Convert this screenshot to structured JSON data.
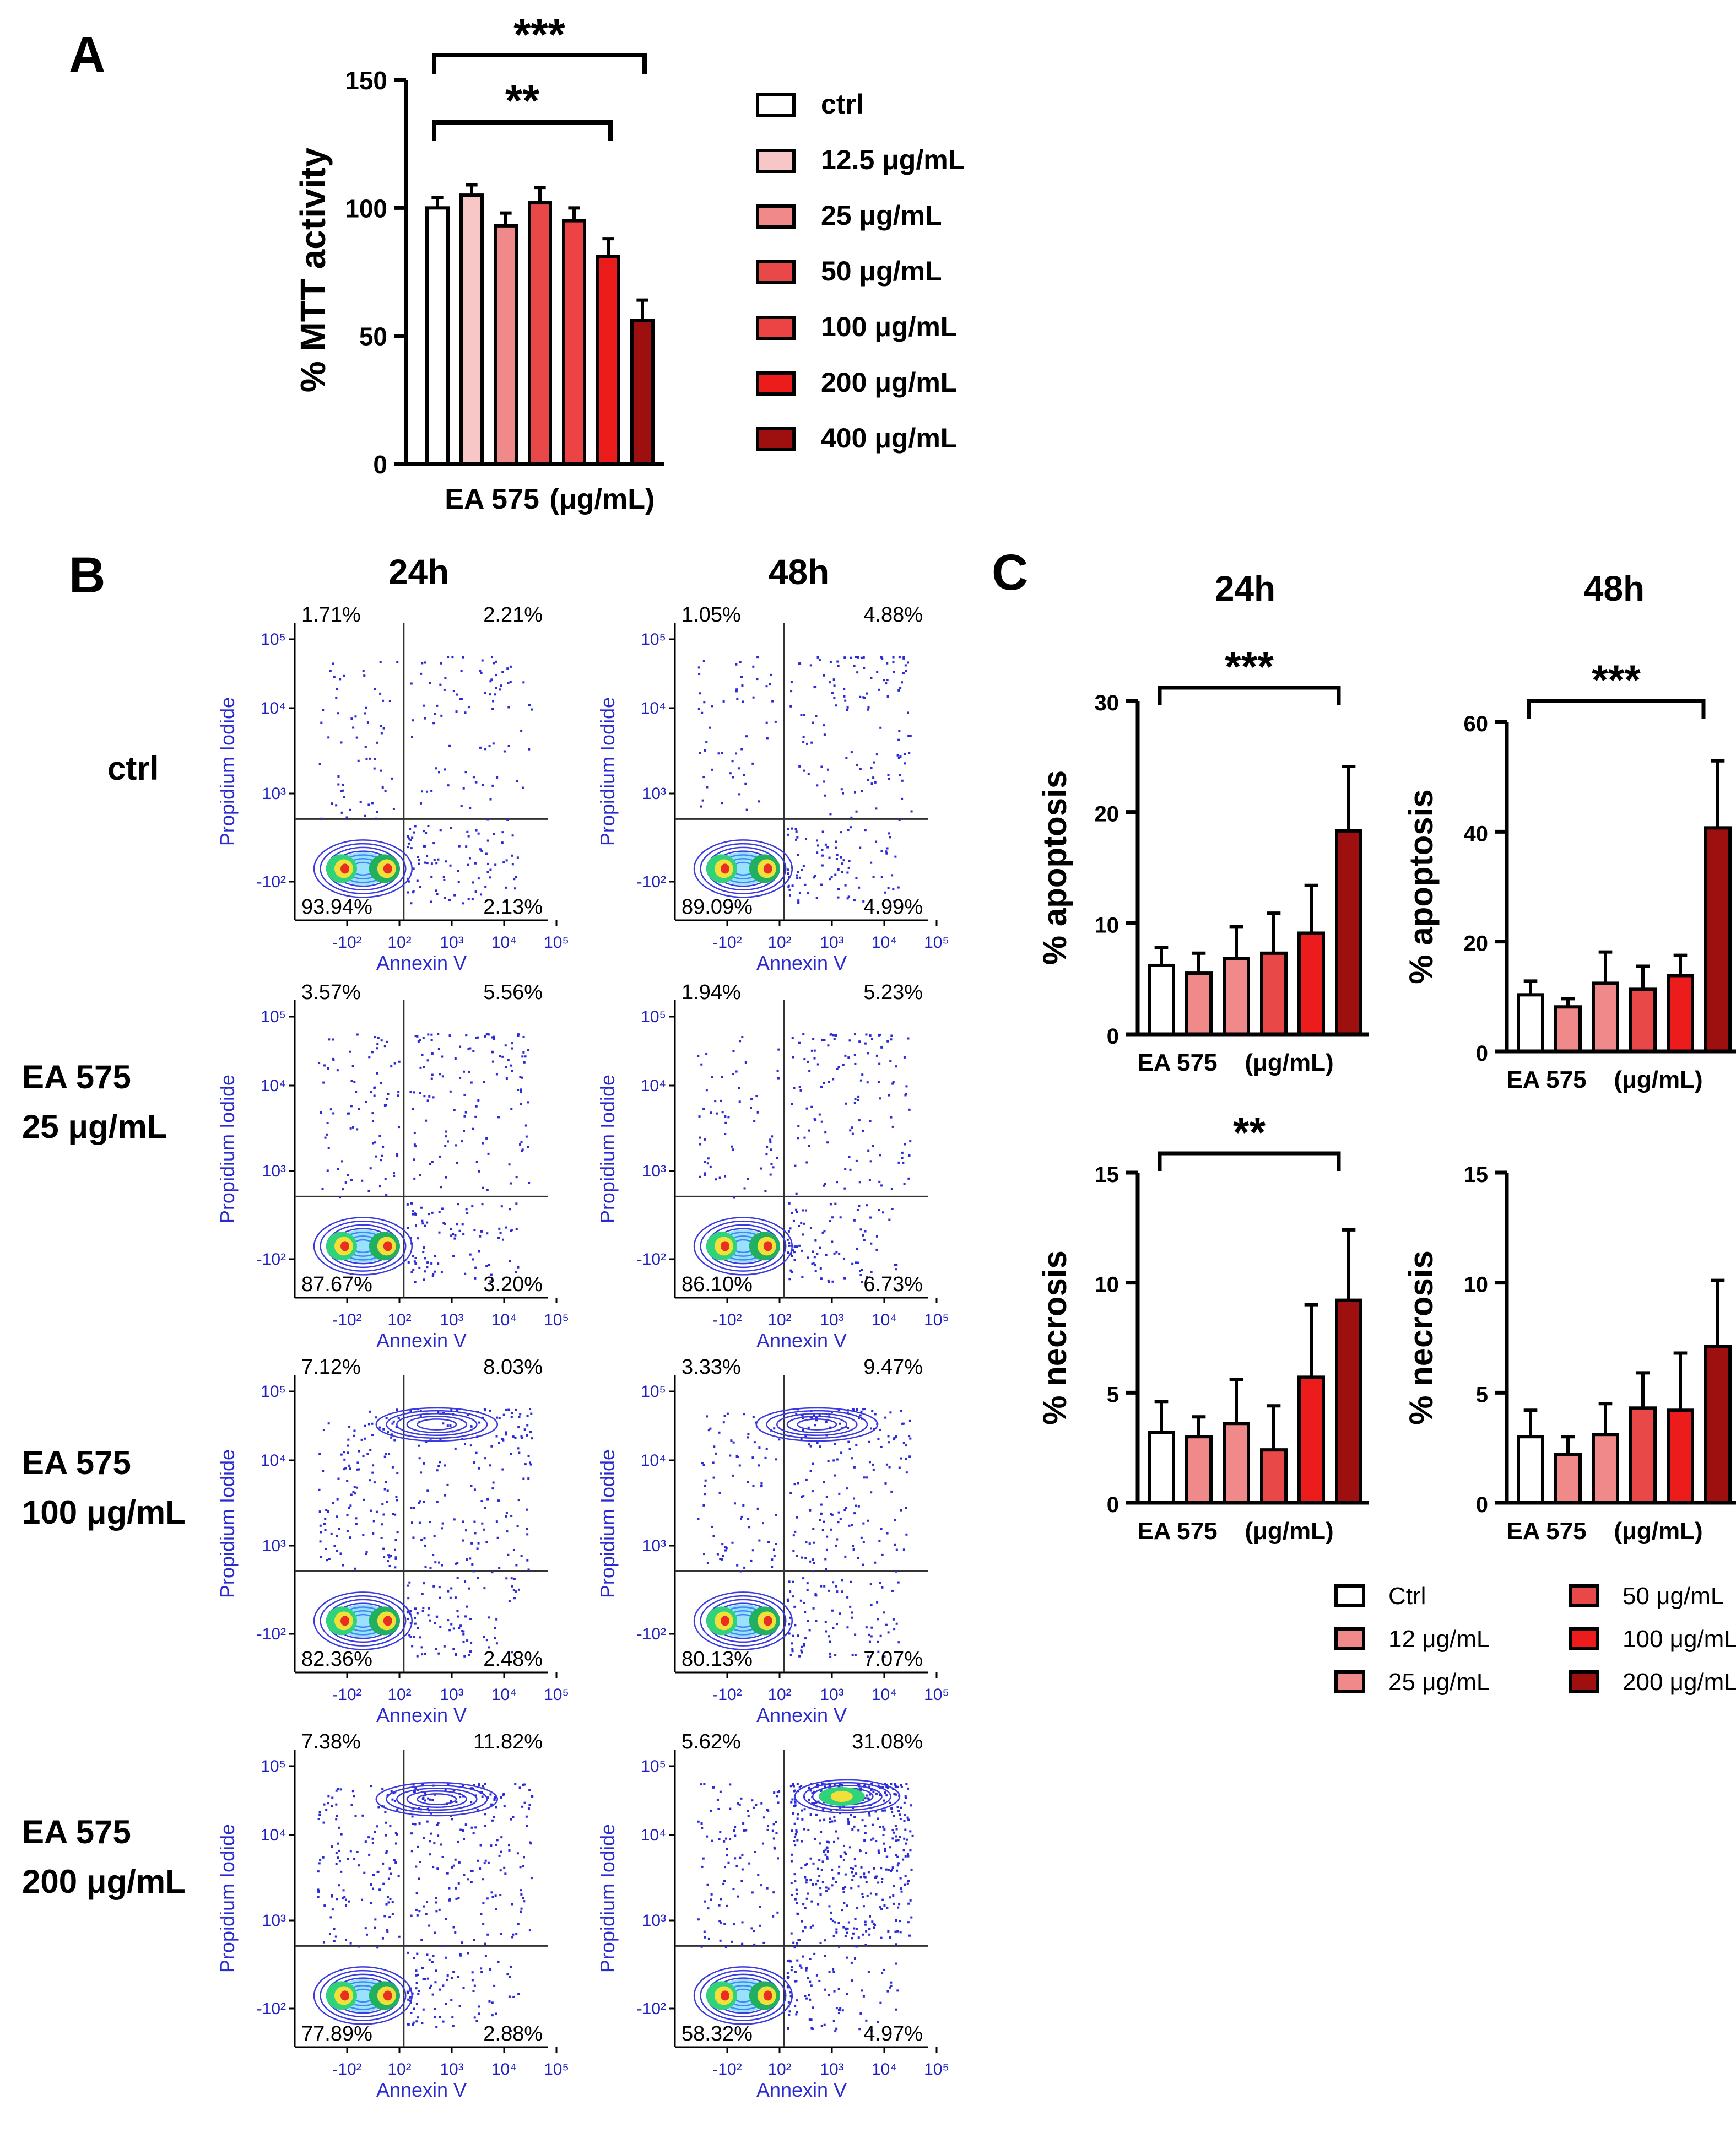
{
  "colors": {
    "axis": "#000000",
    "flow_axis": "#2a2ad0",
    "flow_tick": "#2020c0",
    "dot": "#2b2bd6",
    "contour": "#3a3ae0",
    "error": "#000000"
  },
  "panel_letters": [
    "A",
    "B",
    "C"
  ],
  "panelA": {
    "letter": "A",
    "ylabel": "% MTT activity",
    "xlabel_left": "EA 575",
    "xlabel_right": "(μg/mL)",
    "ylim": [
      0,
      150
    ],
    "yticks": [
      "0",
      "50",
      "100",
      "150"
    ],
    "legend": [
      {
        "label": "ctrl",
        "color": "#ffffff"
      },
      {
        "label": "12.5 μg/mL",
        "color": "#f7c7c7"
      },
      {
        "label": "25 μg/mL",
        "color": "#f08a8a"
      },
      {
        "label": "50 μg/mL",
        "color": "#e84848"
      },
      {
        "label": "100 μg/mL",
        "color": "#ec4444"
      },
      {
        "label": "200 μg/mL",
        "color": "#ec1c1c"
      },
      {
        "label": "400 μg/mL",
        "color": "#9e1010"
      }
    ],
    "sig": [
      "***",
      "**"
    ]
  },
  "panelB": {
    "letter": "B",
    "col_titles": [
      "24h",
      "48h"
    ],
    "row_labels": [
      [
        "ctrl"
      ],
      [
        "EA 575",
        "25 μg/mL"
      ],
      [
        "EA 575",
        "100 μg/mL"
      ],
      [
        "EA 575",
        "200 μg/mL"
      ]
    ],
    "xlabel": "Annexin V",
    "ylabel": "Propidium Iodide",
    "xticks": [
      "-10²",
      "10²",
      "10³",
      "10⁴",
      "10⁵"
    ],
    "yticks": [
      "10⁵",
      "10⁴",
      "10³",
      "-10²"
    ],
    "quadrants": [
      [
        [
          "1.71%",
          "2.21%",
          "93.94%",
          "2.13%"
        ],
        [
          "1.05%",
          "4.88%",
          "89.09%",
          "4.99%"
        ]
      ],
      [
        [
          "3.57%",
          "5.56%",
          "87.67%",
          "3.20%"
        ],
        [
          "1.94%",
          "5.23%",
          "86.10%",
          "6.73%"
        ]
      ],
      [
        [
          "7.12%",
          "8.03%",
          "82.36%",
          "2.48%"
        ],
        [
          "3.33%",
          "9.47%",
          "80.13%",
          "7.07%"
        ]
      ],
      [
        [
          "7.38%",
          "11.82%",
          "77.89%",
          "2.88%"
        ],
        [
          "5.62%",
          "31.08%",
          "58.32%",
          "4.97%"
        ]
      ]
    ]
  },
  "panelC": {
    "letter": "C",
    "col_titles": [
      "24h",
      "48h"
    ],
    "ylabels": [
      "% apoptosis",
      "% necrosis"
    ],
    "xlabel_left": "EA 575",
    "xlabel_right": "(μg/mL)",
    "yticks": {
      "apop24": [
        "0",
        "10",
        "20",
        "30"
      ],
      "apop48": [
        "0",
        "20",
        "40",
        "60"
      ],
      "necrosis": [
        "0",
        "5",
        "10",
        "15"
      ]
    },
    "sig": {
      "apop24": "***",
      "apop48": "***",
      "nec24": "**"
    },
    "legend": [
      {
        "label": "Ctrl",
        "color": "#ffffff"
      },
      {
        "label": "12 μg/mL",
        "color": "#f08a8a"
      },
      {
        "label": "25 μg/mL",
        "color": "#f08a8a"
      },
      {
        "label": "50 μg/mL",
        "color": "#e84848"
      },
      {
        "label": "100 μg/mL",
        "color": "#ec1c1c"
      },
      {
        "label": "200 μg/mL",
        "color": "#9e1010"
      }
    ]
  },
  "chart_data": [
    {
      "type": "bar",
      "panel": "A",
      "categories": [
        "ctrl",
        "12.5 μg/mL",
        "25 μg/mL",
        "50 μg/mL",
        "100 μg/mL",
        "200 μg/mL",
        "400 μg/mL"
      ],
      "values": [
        100,
        105,
        93,
        102,
        95,
        81,
        56
      ],
      "errors": [
        4,
        4,
        5,
        6,
        5,
        7,
        8
      ],
      "colors": [
        "#ffffff",
        "#f7c7c7",
        "#f08a8a",
        "#e84848",
        "#ec4444",
        "#ec1c1c",
        "#9e1010"
      ],
      "ylabel": "% MTT activity",
      "ylim": [
        0,
        150
      ]
    },
    {
      "type": "bar",
      "panel": "C",
      "title": "24h",
      "categories": [
        "Ctrl",
        "12 μg/mL",
        "25 μg/mL",
        "50 μg/mL",
        "100 μg/mL",
        "200 μg/mL"
      ],
      "values": [
        6.2,
        5.5,
        6.8,
        7.3,
        9.1,
        18.3
      ],
      "errors": [
        1.6,
        1.8,
        2.9,
        3.6,
        4.3,
        5.8
      ],
      "ylabel": "% apoptosis",
      "ylim": [
        0,
        30
      ]
    },
    {
      "type": "bar",
      "panel": "C",
      "title": "48h",
      "categories": [
        "Ctrl",
        "12 μg/mL",
        "25 μg/mL",
        "50 μg/mL",
        "100 μg/mL",
        "200 μg/mL"
      ],
      "values": [
        10.3,
        8.1,
        12.4,
        11.3,
        13.8,
        40.7
      ],
      "errors": [
        2.5,
        1.5,
        5.7,
        4.2,
        3.7,
        12.2
      ],
      "ylabel": "% apoptosis",
      "ylim": [
        0,
        60
      ]
    },
    {
      "type": "bar",
      "panel": "C",
      "categories": [
        "Ctrl",
        "12 μg/mL",
        "25 μg/mL",
        "50 μg/mL",
        "100 μg/mL",
        "200 μg/mL"
      ],
      "values": [
        3.2,
        3.0,
        3.6,
        2.4,
        5.7,
        9.2
      ],
      "errors": [
        1.4,
        0.9,
        2.0,
        2.0,
        3.3,
        3.2
      ],
      "ylabel": "% necrosis",
      "ylim": [
        0,
        15
      ]
    },
    {
      "type": "bar",
      "panel": "C",
      "categories": [
        "Ctrl",
        "12 μg/mL",
        "25 μg/mL",
        "50 μg/mL",
        "100 μg/mL",
        "200 μg/mL"
      ],
      "values": [
        3.0,
        2.2,
        3.1,
        4.3,
        4.2,
        7.1
      ],
      "errors": [
        1.2,
        0.8,
        1.4,
        1.6,
        2.6,
        3.0
      ],
      "ylabel": "% necrosis",
      "ylim": [
        0,
        15
      ]
    }
  ]
}
